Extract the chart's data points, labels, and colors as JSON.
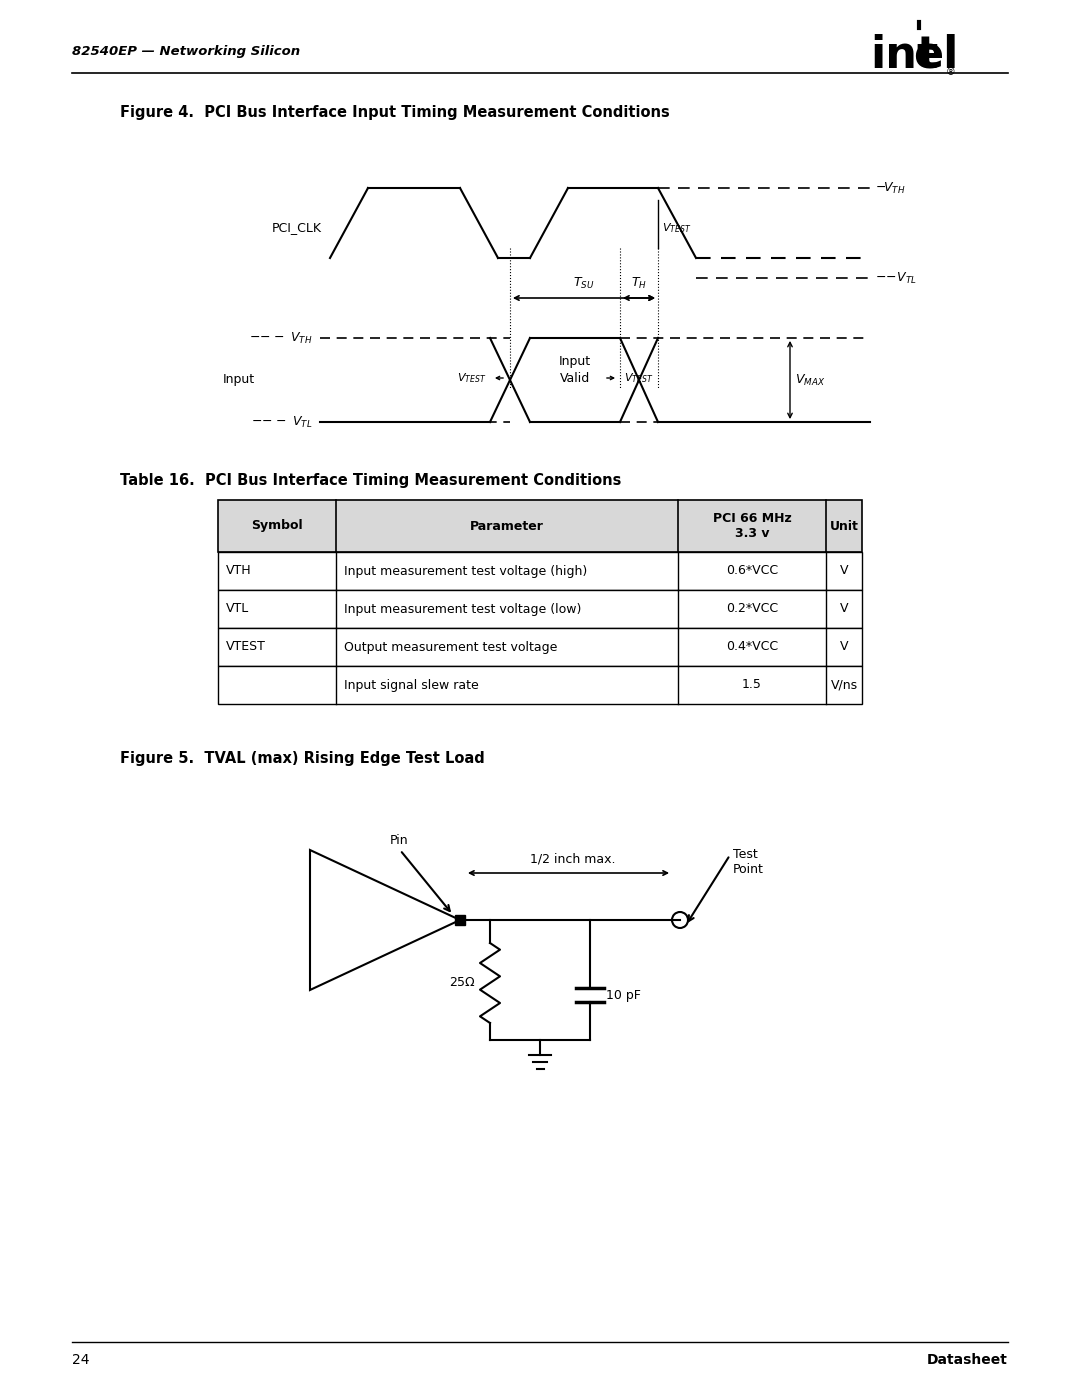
{
  "page_width": 10.8,
  "page_height": 13.97,
  "bg_color": "#ffffff",
  "header_text": "82540EP — Networking Silicon",
  "fig4_title": "Figure 4.  PCI Bus Interface Input Timing Measurement Conditions",
  "fig5_title": "Figure 5.  TVAL (max) Rising Edge Test Load",
  "table_title": "Table 16.  PCI Bus Interface Timing Measurement Conditions",
  "table_headers": [
    "Symbol",
    "Parameter",
    "PCI 66 MHz\n3.3 v",
    "Unit"
  ],
  "table_rows": [
    [
      "VTH",
      "Input measurement test voltage (high)",
      "0.6*VCC",
      "V"
    ],
    [
      "VTL",
      "Input measurement test voltage (low)",
      "0.2*VCC",
      "V"
    ],
    [
      "VTEST",
      "Output measurement test voltage",
      "0.4*VCC",
      "V"
    ],
    [
      "",
      "Input signal slew rate",
      "1.5",
      "V/ns"
    ]
  ],
  "footer_page": "24",
  "footer_right": "Datasheet"
}
